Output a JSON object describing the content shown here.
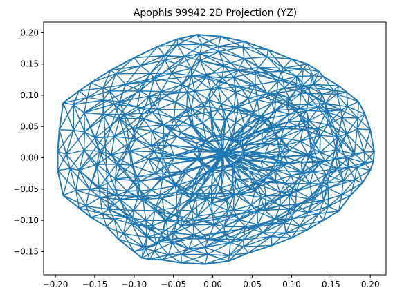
{
  "chart_data": {
    "type": "line",
    "title": "Apophis 99942 2D Projection (YZ)",
    "xlabel": "",
    "ylabel": "",
    "xlim": [
      -0.215,
      0.22
    ],
    "ylim": [
      -0.187,
      0.217
    ],
    "x_ticks": [
      -0.2,
      -0.15,
      -0.1,
      -0.05,
      0.0,
      0.05,
      0.1,
      0.15,
      0.2
    ],
    "x_tick_labels": [
      "−0.20",
      "−0.15",
      "−0.10",
      "−0.05",
      "0.00",
      "0.05",
      "0.10",
      "0.15",
      "0.20"
    ],
    "y_ticks": [
      -0.15,
      -0.1,
      -0.05,
      0.0,
      0.05,
      0.1,
      0.15,
      0.2
    ],
    "y_tick_labels": [
      "−0.15",
      "−0.10",
      "−0.05",
      "0.00",
      "0.05",
      "0.10",
      "0.15",
      "0.20"
    ],
    "grid": false,
    "legend": "none",
    "line_color": "#1f77b4",
    "series": [
      {
        "outline_y": [
          -0.02,
          0.01,
          0.04,
          0.07,
          0.1,
          0.12,
          0.135,
          0.14,
          0.16,
          0.17,
          0.185,
          0.193,
          0.2,
          0.205,
          0.204,
          0.2,
          0.19,
          0.175,
          0.16,
          0.14,
          0.12,
          0.1,
          0.075,
          0.045,
          0.02,
          -0.01,
          -0.04,
          -0.065,
          -0.08,
          -0.09,
          -0.1,
          -0.12,
          -0.135,
          -0.155,
          -0.17,
          -0.19,
          -0.197,
          -0.197,
          -0.195,
          -0.19,
          -0.17,
          -0.155,
          -0.13,
          -0.1,
          -0.07,
          -0.045
        ],
        "outline_z": [
          0.197,
          0.194,
          0.186,
          0.173,
          0.158,
          0.15,
          0.138,
          0.13,
          0.115,
          0.105,
          0.09,
          0.07,
          0.045,
          0.01,
          -0.005,
          -0.02,
          -0.04,
          -0.06,
          -0.085,
          -0.1,
          -0.115,
          -0.128,
          -0.14,
          -0.152,
          -0.165,
          -0.17,
          -0.168,
          -0.163,
          -0.162,
          -0.16,
          -0.15,
          -0.13,
          -0.11,
          -0.095,
          -0.08,
          -0.06,
          -0.02,
          0.01,
          0.045,
          0.088,
          0.107,
          0.12,
          0.14,
          0.16,
          0.178,
          0.19
        ]
      }
    ]
  }
}
